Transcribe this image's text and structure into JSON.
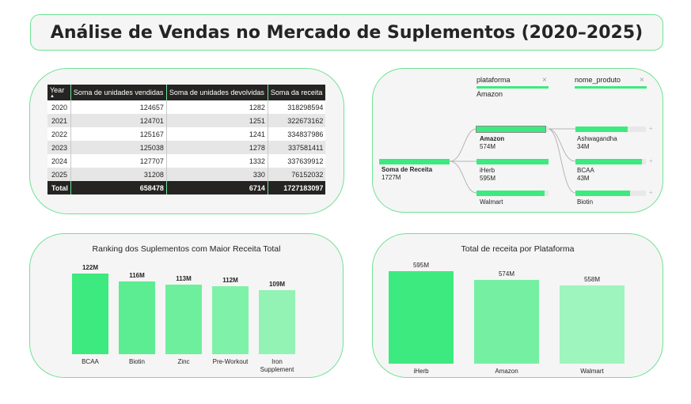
{
  "title": "Análise de Vendas no Mercado de Suplementos (2020–2025)",
  "table": {
    "headers": [
      "Year",
      "Soma de unidades vendidas",
      "Soma de unidades devolvidas",
      "Soma da receita"
    ],
    "sort_indicator": "▲",
    "rows": [
      [
        "2020",
        "124657",
        "1282",
        "318298594"
      ],
      [
        "2021",
        "124701",
        "1251",
        "322673162"
      ],
      [
        "2022",
        "125167",
        "1241",
        "334837986"
      ],
      [
        "2023",
        "125038",
        "1278",
        "337581411"
      ],
      [
        "2024",
        "127707",
        "1332",
        "337639912"
      ],
      [
        "2025",
        "31208",
        "330",
        "76152032"
      ]
    ],
    "total": [
      "Total",
      "658478",
      "6714",
      "1727183097"
    ]
  },
  "tree": {
    "slicers": [
      {
        "label": "plataforma",
        "value": "Amazon"
      },
      {
        "label": "nome_produto",
        "value": ""
      }
    ],
    "root": {
      "label": "Soma de Receita",
      "value": "1727M"
    },
    "level1": [
      {
        "label": "Amazon",
        "value": "574M",
        "fill": 1.0,
        "selected": true
      },
      {
        "label": "iHerb",
        "value": "595M",
        "fill": 1.0,
        "selected": false
      },
      {
        "label": "Walmart",
        "value": "",
        "fill": 0.98,
        "selected": false
      }
    ],
    "level2": [
      {
        "label": "Ashwagandha",
        "value": "34M",
        "fill": 0.75
      },
      {
        "label": "BCAA",
        "value": "43M",
        "fill": 0.95
      },
      {
        "label": "Biotin",
        "value": "",
        "fill": 0.75
      }
    ],
    "plus_symbol": "+",
    "close_symbol": "×"
  },
  "ranking_chart": {
    "chart_data": {
      "type": "bar",
      "title": "Ranking dos Suplementos com Maior Receita Total",
      "categories": [
        "BCAA",
        "Biotin",
        "Zinc",
        "Pre-Workout",
        "Iron Supplement"
      ],
      "values": [
        122,
        116,
        113,
        112,
        109
      ],
      "labels": [
        "122M",
        "116M",
        "113M",
        "112M",
        "109M"
      ],
      "unit": "M",
      "colors": [
        "#3dea7f",
        "#5ced92",
        "#6eef9d",
        "#80f1a9",
        "#92f3b5"
      ]
    }
  },
  "platform_chart": {
    "chart_data": {
      "type": "bar",
      "title": "Total de receita por Plataforma",
      "categories": [
        "iHerb",
        "Amazon",
        "Walmart"
      ],
      "values": [
        595,
        574,
        558
      ],
      "labels": [
        "595M",
        "574M",
        "558M"
      ],
      "unit": "M",
      "colors": [
        "#3dea7f",
        "#75f0a3",
        "#9ef5bd"
      ]
    }
  }
}
